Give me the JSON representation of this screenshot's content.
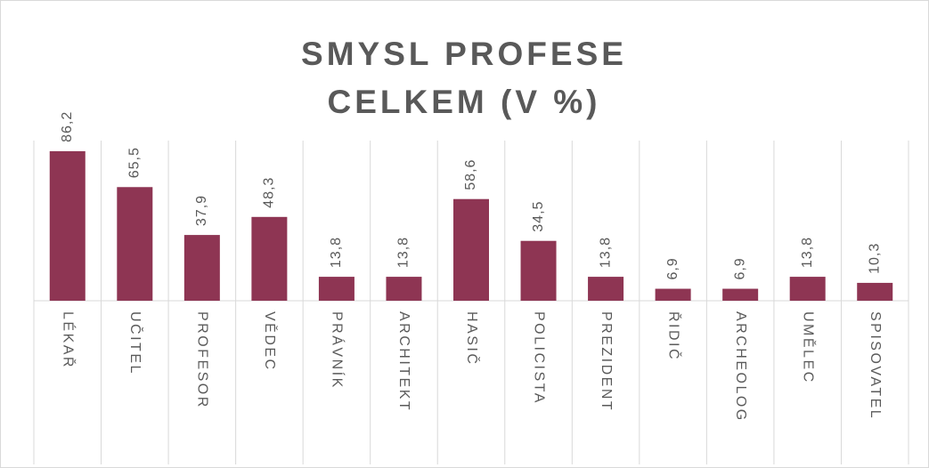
{
  "chart_data": {
    "type": "bar",
    "title": "SMYSL PROFESE CELKEM (V %)",
    "categories": [
      "LÉKAŘ",
      "UČITEL",
      "PROFESOR",
      "VĚDEC",
      "PRÁVNÍK",
      "ARCHITEKT",
      "HASIČ",
      "POLICISTA",
      "PREZIDENT",
      "ŘIDIČ",
      "ARCHEOLOG",
      "UMĚLEC",
      "SPISOVATEL"
    ],
    "values": [
      86.2,
      65.5,
      37.9,
      48.3,
      13.8,
      13.8,
      58.6,
      34.5,
      13.8,
      6.9,
      6.9,
      13.8,
      10.3
    ],
    "value_labels": [
      "86,2",
      "65,5",
      "37,9",
      "48,3",
      "13,8",
      "13,8",
      "58,6",
      "34,5",
      "13,8",
      "6,9",
      "6,9",
      "13,8",
      "10,3"
    ],
    "color": "#8e3553"
  }
}
